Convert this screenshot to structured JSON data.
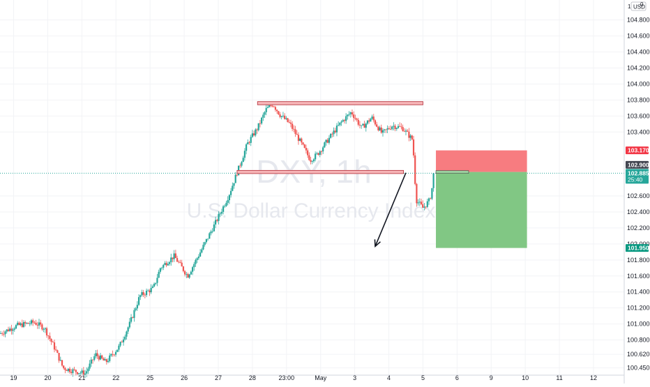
{
  "header": {
    "top_right_digits": "1",
    "currency_label": "USD",
    "scale_glyph": "0"
  },
  "watermark": {
    "symbol": "DXY, 1h",
    "description": "U.S. Dollar Currency Index"
  },
  "colors": {
    "up": "#26a69a",
    "down": "#ef5350",
    "stop_zone": "#f77c80",
    "target_zone": "#81c784",
    "stop_tag": "#f23645",
    "target_tag": "#089981",
    "last_price_tag": "#26a69a",
    "prev_close_tag": "#434651",
    "range_box_fill": "#f6b5b7",
    "range_box_border": "#b22833",
    "price_line": "#26a69a"
  },
  "chart_data": {
    "type": "candlestick",
    "symbol": "DXY",
    "interval": "1h",
    "ylim": [
      100.36,
      105.05
    ],
    "y_ticks": [
      {
        "value": 104.8,
        "label": "104.800"
      },
      {
        "value": 104.6,
        "label": "104.600"
      },
      {
        "value": 104.4,
        "label": "104.400"
      },
      {
        "value": 104.2,
        "label": "104.200"
      },
      {
        "value": 104.0,
        "label": "104.000"
      },
      {
        "value": 103.8,
        "label": "103.800"
      },
      {
        "value": 103.6,
        "label": "103.600"
      },
      {
        "value": 103.4,
        "label": "103.400"
      },
      {
        "value": 102.6,
        "label": "102.600"
      },
      {
        "value": 102.4,
        "label": "102.400"
      },
      {
        "value": 102.2,
        "label": "102.200"
      },
      {
        "value": 102.0,
        "label": "102.000"
      },
      {
        "value": 101.8,
        "label": "101.800"
      },
      {
        "value": 101.6,
        "label": "101.600"
      },
      {
        "value": 101.4,
        "label": "101.400"
      },
      {
        "value": 101.2,
        "label": "101.200"
      },
      {
        "value": 101.0,
        "label": "101.000"
      },
      {
        "value": 100.8,
        "label": "100.800"
      },
      {
        "value": 100.62,
        "label": "100.620"
      },
      {
        "value": 100.45,
        "label": "100.450"
      }
    ],
    "x_ticks": [
      {
        "pos": 0.4,
        "label": "19"
      },
      {
        "pos": 1.4,
        "label": "20"
      },
      {
        "pos": 2.4,
        "label": "21"
      },
      {
        "pos": 3.4,
        "label": "22"
      },
      {
        "pos": 4.4,
        "label": "25"
      },
      {
        "pos": 5.4,
        "label": "26"
      },
      {
        "pos": 6.4,
        "label": "27"
      },
      {
        "pos": 7.4,
        "label": "28"
      },
      {
        "pos": 8.4,
        "label": "23:00"
      },
      {
        "pos": 9.4,
        "label": "May"
      },
      {
        "pos": 10.4,
        "label": "3"
      },
      {
        "pos": 11.4,
        "label": "4"
      },
      {
        "pos": 12.4,
        "label": "5"
      },
      {
        "pos": 13.4,
        "label": "6"
      },
      {
        "pos": 14.4,
        "label": "9"
      },
      {
        "pos": 15.4,
        "label": "10"
      },
      {
        "pos": 16.4,
        "label": "11"
      },
      {
        "pos": 17.4,
        "label": "12"
      }
    ],
    "xlim": [
      0,
      18.3
    ],
    "price_path": [
      [
        0.0,
        100.88
      ],
      [
        0.5,
        100.98
      ],
      [
        1.0,
        101.02
      ],
      [
        1.3,
        100.95
      ],
      [
        1.6,
        100.7
      ],
      [
        1.85,
        100.45
      ],
      [
        2.1,
        100.42
      ],
      [
        2.5,
        100.38
      ],
      [
        2.8,
        100.62
      ],
      [
        3.1,
        100.52
      ],
      [
        3.5,
        100.72
      ],
      [
        3.8,
        101.0
      ],
      [
        4.1,
        101.35
      ],
      [
        4.5,
        101.45
      ],
      [
        4.7,
        101.7
      ],
      [
        5.1,
        101.85
      ],
      [
        5.5,
        101.6
      ],
      [
        5.9,
        101.92
      ],
      [
        6.3,
        102.25
      ],
      [
        6.7,
        102.6
      ],
      [
        7.0,
        102.95
      ],
      [
        7.25,
        103.25
      ],
      [
        7.55,
        103.45
      ],
      [
        7.8,
        103.68
      ],
      [
        8.0,
        103.75
      ],
      [
        8.2,
        103.62
      ],
      [
        8.5,
        103.5
      ],
      [
        8.8,
        103.28
      ],
      [
        9.1,
        103.05
      ],
      [
        9.3,
        103.12
      ],
      [
        9.7,
        103.35
      ],
      [
        10.0,
        103.52
      ],
      [
        10.3,
        103.65
      ],
      [
        10.6,
        103.45
      ],
      [
        10.9,
        103.58
      ],
      [
        11.2,
        103.38
      ],
      [
        11.5,
        103.48
      ],
      [
        11.8,
        103.45
      ],
      [
        12.1,
        103.3
      ],
      [
        12.2,
        102.55
      ],
      [
        12.4,
        102.45
      ],
      [
        12.6,
        102.55
      ],
      [
        12.75,
        102.89
      ]
    ],
    "last_price": 102.885,
    "last_price_label": "102.885",
    "countdown": "25:40",
    "prev_close_label": "102.900",
    "range_box_top": {
      "y1": 103.78,
      "y2": 103.74,
      "x1": 7.55,
      "x2": 12.4
    },
    "range_box_bottom": {
      "y1": 102.92,
      "y2": 102.88,
      "x1": 6.95,
      "x2": 11.83
    },
    "short_position": {
      "entry": 102.9,
      "stop": 103.17,
      "target": 101.95,
      "x1": 12.78,
      "x2": 15.45,
      "entry_line_end": 13.74,
      "stop_label": "103.170",
      "target_label": "101.950"
    },
    "arrow": {
      "from": [
        11.9,
        102.89
      ],
      "to": [
        11.0,
        101.97
      ]
    }
  }
}
